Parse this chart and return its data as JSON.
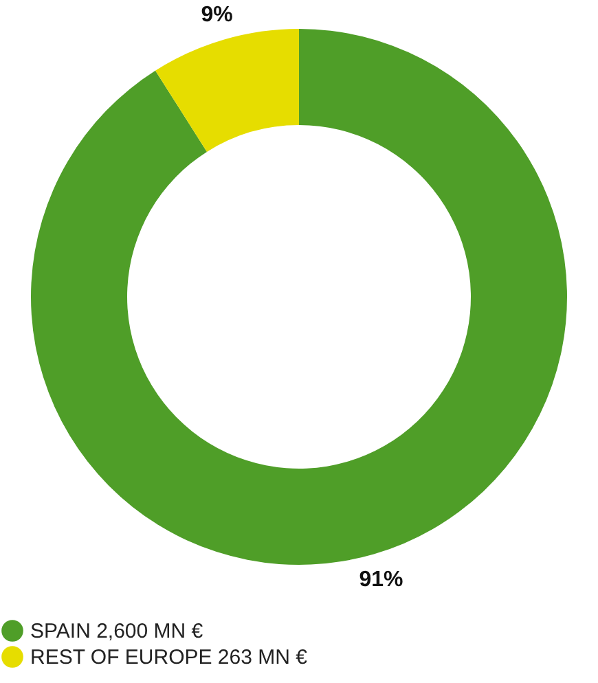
{
  "chart_data": {
    "type": "donut",
    "categories": [
      "SPAIN 2,600 MN €",
      "REST OF EUROPE 263 MN €"
    ],
    "values": [
      91,
      9
    ],
    "colors": [
      "#4f9e28",
      "#e6dd00"
    ],
    "value_labels": [
      "91%",
      "9%"
    ],
    "legend": "bottom"
  }
}
